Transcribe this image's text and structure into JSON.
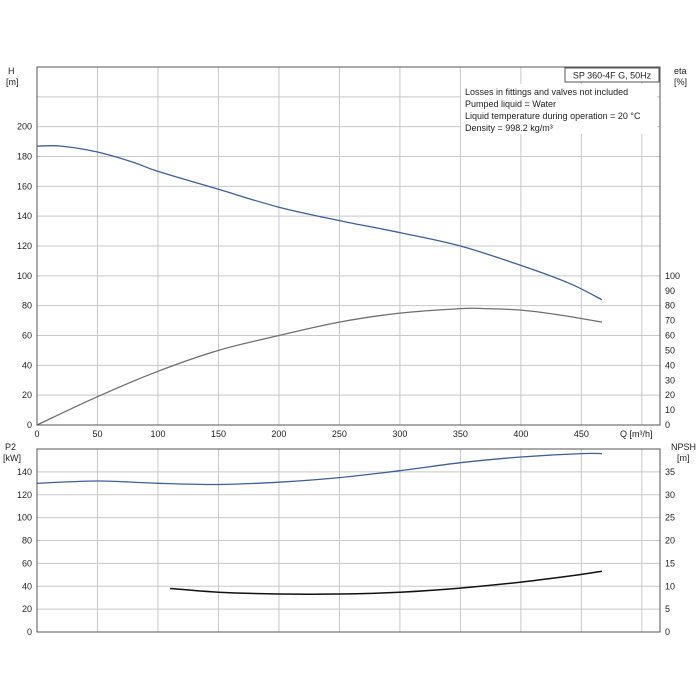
{
  "chart_data": [
    {
      "type": "line",
      "title": "SP 360-4F G, 50Hz",
      "notes": [
        "Losses in fittings and valves not included",
        "Pumped liquid = Water",
        "Liquid temperature during operation = 20 °C",
        "Density = 998.2 kg/m³"
      ],
      "xlabel": "Q [m³/h]",
      "xlim": [
        0,
        515
      ],
      "x_ticks": [
        0,
        50,
        100,
        150,
        200,
        250,
        300,
        350,
        400,
        450
      ],
      "y_left": {
        "label_top": "H",
        "label_unit": "[m]",
        "ylim": [
          0,
          240
        ],
        "ticks": [
          0,
          20,
          40,
          60,
          80,
          100,
          120,
          140,
          160,
          180,
          200
        ]
      },
      "y_right": {
        "label_top": "eta",
        "label_unit": "[%]",
        "ylim": [
          0,
          240
        ],
        "ticks": [
          0,
          10,
          20,
          30,
          40,
          50,
          60,
          70,
          80,
          90,
          100
        ]
      },
      "grid": true,
      "series": [
        {
          "color": "#3a5f9a",
          "axis": "left",
          "x": [
            0,
            20,
            50,
            80,
            100,
            150,
            200,
            250,
            300,
            350,
            400,
            440,
            467
          ],
          "y": [
            187,
            187,
            183,
            176,
            170,
            158,
            146,
            137,
            129,
            120,
            107,
            95,
            84
          ]
        },
        {
          "color": "#6e6e6e",
          "axis": "left",
          "x": [
            0,
            50,
            100,
            150,
            200,
            250,
            300,
            350,
            370,
            400,
            430,
            467
          ],
          "y": [
            0,
            19,
            36,
            50,
            60,
            69,
            75,
            78,
            78,
            77,
            74,
            69
          ]
        }
      ]
    },
    {
      "type": "line",
      "x_ticks": [
        0,
        50,
        100,
        150,
        200,
        250,
        300,
        350,
        400,
        450
      ],
      "xlim": [
        0,
        515
      ],
      "y_left": {
        "label_top": "P2",
        "label_unit": "[kW]",
        "ylim": [
          0,
          160
        ],
        "ticks": [
          0,
          20,
          40,
          60,
          80,
          100,
          120,
          140
        ]
      },
      "y_right": {
        "label_top": "NPSH",
        "label_unit": "[m]",
        "ylim": [
          0,
          40
        ],
        "ticks": [
          0,
          5,
          10,
          15,
          20,
          25,
          30,
          35
        ]
      },
      "grid": true,
      "series": [
        {
          "color": "#3a5f9a",
          "axis": "left",
          "x": [
            0,
            50,
            100,
            150,
            200,
            250,
            300,
            350,
            400,
            450,
            467
          ],
          "y": [
            130,
            132,
            130,
            129,
            131,
            135,
            141,
            148,
            153,
            156,
            156
          ]
        },
        {
          "color": "#111111",
          "axis": "right",
          "x": [
            110,
            150,
            200,
            250,
            300,
            350,
            400,
            450,
            467
          ],
          "y": [
            9.5,
            8.7,
            8.3,
            8.3,
            8.7,
            9.6,
            10.9,
            12.6,
            13.3
          ]
        }
      ]
    }
  ]
}
